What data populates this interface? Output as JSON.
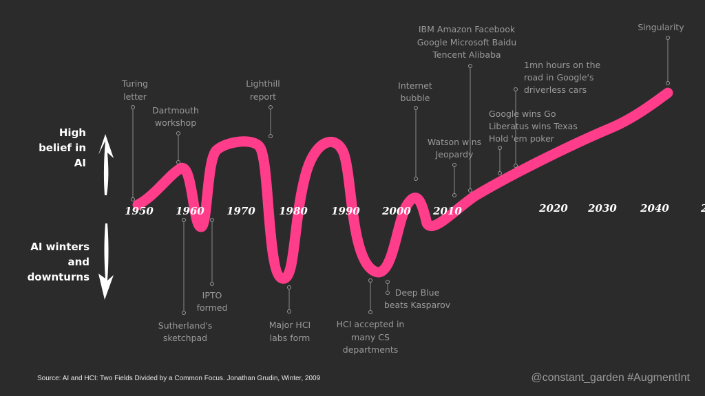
{
  "side_labels": {
    "high": [
      "High",
      "belief in",
      "AI"
    ],
    "low": [
      "AI winters",
      "and",
      "downturns"
    ]
  },
  "years": [
    "1950",
    "1960",
    "1970",
    "1980",
    "1990",
    "2000",
    "2010",
    "2020",
    "2030",
    "2040",
    "20"
  ],
  "events_above": [
    {
      "id": "turing",
      "lines": [
        "Turing",
        "letter"
      ]
    },
    {
      "id": "dartmouth",
      "lines": [
        "Dartmouth",
        "workshop"
      ]
    },
    {
      "id": "lighthill",
      "lines": [
        "Lighthill",
        "report"
      ]
    },
    {
      "id": "internet",
      "lines": [
        "Internet",
        "bubble"
      ]
    },
    {
      "id": "watson",
      "lines": [
        "Watson wins",
        "Jeopardy"
      ]
    },
    {
      "id": "companies",
      "lines": [
        "IBM  Amazon Facebook",
        "Google Microsoft Baidu",
        "Tencent Alibaba"
      ]
    },
    {
      "id": "driverless",
      "lines": [
        "1mn hours on the",
        "road in Google's",
        "driverless cars"
      ]
    },
    {
      "id": "go",
      "lines": [
        "Google wins Go",
        "Liberatus wins Texas",
        "Hold 'em poker"
      ]
    },
    {
      "id": "singularity",
      "lines": [
        "Singularity"
      ]
    }
  ],
  "events_below": [
    {
      "id": "sutherland",
      "lines": [
        "Sutherland's",
        "sketchpad"
      ]
    },
    {
      "id": "ipto",
      "lines": [
        "IPTO",
        "formed"
      ]
    },
    {
      "id": "majorhci",
      "lines": [
        "Major HCI",
        "labs form"
      ]
    },
    {
      "id": "hciaccepted",
      "lines": [
        "HCI accepted in",
        "many CS",
        "departments"
      ]
    },
    {
      "id": "deepblue",
      "lines": [
        "Deep Blue",
        "beats Kasparov"
      ]
    }
  ],
  "footer": {
    "source": "Source:  AI and HCI: Two Fields Divided by a Common Focus. Jonathan Grudin, Winter, 2009",
    "tag": "@constant_garden #AugmentInt"
  },
  "colors": {
    "background": "#2b2b2b",
    "curve": "#ff3d8a",
    "text": "#9a9a9a"
  }
}
